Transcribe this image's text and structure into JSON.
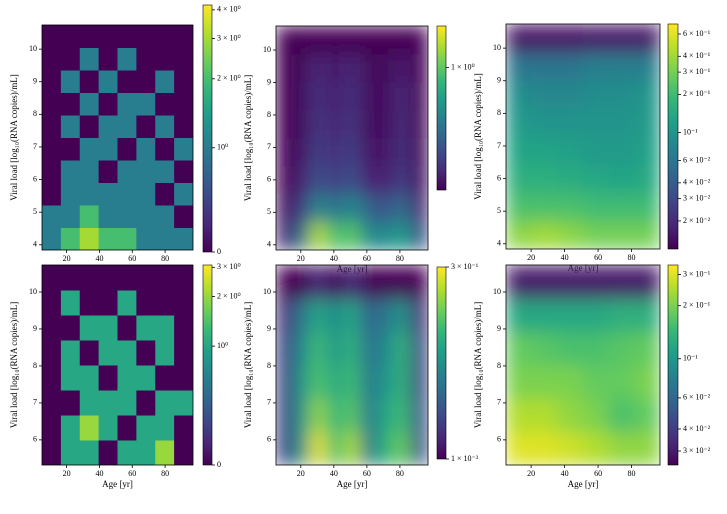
{
  "chart_data": [
    {
      "type": "heatmap",
      "colormap": "viridis",
      "smooth": false,
      "xlabel": "Age [yr]",
      "ylabel": "Viral load [log₁₀(RNA copies)/mL]",
      "xlim": [
        5,
        97
      ],
      "ylim": [
        3.84,
        10.74
      ],
      "xticks": [
        20,
        40,
        60,
        80
      ],
      "yticks": [
        4,
        5,
        6,
        7,
        8,
        9,
        10
      ],
      "color_scale": "symlog",
      "linscale": 0.455,
      "clim": [
        0,
        4.2
      ],
      "cticks": [
        0,
        {
          "value": 1,
          "label": "10⁰"
        },
        {
          "value": 2,
          "label": "2 × 10⁰"
        },
        {
          "value": 3,
          "label": "3 × 10⁰"
        },
        {
          "value": 4,
          "label": "4 × 10⁰"
        }
      ],
      "z": [
        [
          1,
          2,
          3,
          2,
          2,
          1,
          1,
          1
        ],
        [
          1,
          1,
          2,
          1,
          1,
          1,
          1,
          0
        ],
        [
          0,
          1,
          1,
          1,
          1,
          1,
          0,
          1
        ],
        [
          0,
          1,
          1,
          0,
          1,
          1,
          1,
          0
        ],
        [
          0,
          0,
          1,
          1,
          0,
          1,
          0,
          1
        ],
        [
          0,
          1,
          0,
          1,
          1,
          0,
          1,
          0
        ],
        [
          0,
          0,
          1,
          0,
          1,
          1,
          0,
          0
        ],
        [
          0,
          1,
          0,
          1,
          0,
          0,
          1,
          0
        ],
        [
          0,
          0,
          1,
          0,
          1,
          0,
          0,
          0
        ],
        [
          0,
          0,
          0,
          0,
          0,
          0,
          0,
          0
        ]
      ]
    },
    {
      "type": "heatmap",
      "colormap": "viridis",
      "smooth": true,
      "xlabel": "Age [yr]",
      "ylabel": "Viral load [log₁₀(RNA copies)/mL]",
      "xlim": [
        5,
        97
      ],
      "ylim": [
        3.84,
        10.74
      ],
      "xticks": [
        20,
        40,
        60,
        80
      ],
      "yticks": [
        4,
        5,
        6,
        7,
        8,
        9,
        10
      ],
      "color_scale": "log",
      "clim": [
        0.25,
        1.6
      ],
      "cticks": [
        {
          "value": 1,
          "label": "1 × 10⁰"
        }
      ],
      "z": [
        [
          0.3,
          0.5,
          1.3,
          0.9,
          1.0,
          0.6,
          0.6,
          0.7,
          0.4
        ],
        [
          0.27,
          0.35,
          0.6,
          0.5,
          0.6,
          0.45,
          0.4,
          0.5,
          0.3
        ],
        [
          0.25,
          0.3,
          0.4,
          0.35,
          0.4,
          0.3,
          0.3,
          0.35,
          0.27
        ],
        [
          0.25,
          0.28,
          0.36,
          0.32,
          0.36,
          0.28,
          0.28,
          0.33,
          0.26
        ],
        [
          0.25,
          0.27,
          0.34,
          0.3,
          0.34,
          0.27,
          0.27,
          0.32,
          0.25
        ],
        [
          0.25,
          0.27,
          0.33,
          0.29,
          0.33,
          0.27,
          0.27,
          0.31,
          0.25
        ],
        [
          0.25,
          0.26,
          0.31,
          0.28,
          0.31,
          0.26,
          0.26,
          0.29,
          0.25
        ],
        [
          0.25,
          0.25,
          0.25,
          0.25,
          0.25,
          0.25,
          0.25,
          0.25,
          0.25
        ]
      ]
    },
    {
      "type": "heatmap",
      "colormap": "viridis",
      "smooth": true,
      "xlabel": "Age [yr]",
      "ylabel": "Viral load [log₁₀(RNA copies)/mL]",
      "xlim": [
        5,
        97
      ],
      "ylim": [
        3.84,
        10.74
      ],
      "xticks": [
        20,
        40,
        60,
        80
      ],
      "yticks": [
        4,
        5,
        6,
        7,
        8,
        9,
        10
      ],
      "color_scale": "log",
      "clim": [
        0.012,
        0.72
      ],
      "cticks": [
        {
          "value": 0.6,
          "label": "6 × 10⁻¹"
        },
        {
          "value": 0.4,
          "label": "4 × 10⁻¹"
        },
        {
          "value": 0.3,
          "label": "3 × 10⁻¹"
        },
        {
          "value": 0.2,
          "label": "2 × 10⁻¹"
        },
        {
          "value": 0.1,
          "label": "10⁻¹"
        },
        {
          "value": 0.06,
          "label": "6 × 10⁻²"
        },
        {
          "value": 0.04,
          "label": "4 × 10⁻²"
        },
        {
          "value": 0.03,
          "label": "3 × 10⁻²"
        },
        {
          "value": 0.02,
          "label": "2 × 10⁻²"
        }
      ],
      "z": [
        [
          0.35,
          0.4,
          0.35,
          0.3,
          0.3,
          0.3
        ],
        [
          0.22,
          0.22,
          0.22,
          0.2,
          0.2,
          0.2
        ],
        [
          0.16,
          0.16,
          0.15,
          0.14,
          0.13,
          0.14
        ],
        [
          0.13,
          0.13,
          0.12,
          0.11,
          0.11,
          0.12
        ],
        [
          0.11,
          0.1,
          0.1,
          0.1,
          0.1,
          0.11
        ],
        [
          0.09,
          0.08,
          0.08,
          0.09,
          0.09,
          0.1
        ],
        [
          0.06,
          0.06,
          0.06,
          0.07,
          0.07,
          0.07
        ],
        [
          0.015,
          0.015,
          0.015,
          0.016,
          0.016,
          0.016
        ]
      ]
    },
    {
      "type": "heatmap",
      "colormap": "viridis",
      "smooth": false,
      "xlabel": "Age [yr]",
      "ylabel": "Viral load [log₁₀(RNA copies)/mL]",
      "xlim": [
        5,
        97
      ],
      "ylim": [
        5.32,
        10.73
      ],
      "xticks": [
        20,
        40,
        60,
        80
      ],
      "yticks": [
        6,
        7,
        8,
        9,
        10
      ],
      "color_scale": "symlog",
      "linscale": 0.72,
      "clim": [
        0,
        3.1
      ],
      "cticks": [
        0,
        {
          "value": 1,
          "label": "10⁰"
        },
        {
          "value": 2,
          "label": "2 × 10⁰"
        },
        {
          "value": 3,
          "label": "3 × 10⁰"
        }
      ],
      "z": [
        [
          0,
          1,
          1,
          0,
          1,
          1,
          2,
          0
        ],
        [
          0,
          1,
          2,
          1,
          0,
          1,
          1,
          0
        ],
        [
          0,
          0,
          1,
          1,
          1,
          0,
          1,
          1
        ],
        [
          0,
          1,
          1,
          0,
          1,
          1,
          0,
          0
        ],
        [
          0,
          1,
          0,
          1,
          1,
          0,
          1,
          0
        ],
        [
          0,
          0,
          1,
          1,
          0,
          1,
          1,
          0
        ],
        [
          0,
          1,
          0,
          0,
          1,
          0,
          0,
          0
        ],
        [
          0,
          0,
          0,
          0,
          0,
          0,
          0,
          0
        ]
      ]
    },
    {
      "type": "heatmap",
      "colormap": "viridis",
      "smooth": true,
      "xlabel": "Age [yr]",
      "ylabel": "Viral load [log₁₀(RNA copies)/mL]",
      "xlim": [
        5,
        97
      ],
      "ylim": [
        5.32,
        10.73
      ],
      "xticks": [
        20,
        40,
        60,
        80
      ],
      "yticks": [
        6,
        7,
        8,
        9,
        10
      ],
      "color_scale": "log",
      "clim": [
        0.001,
        0.3
      ],
      "cticks": [
        {
          "value": 0.3,
          "label": "3 × 10⁻¹"
        },
        {
          "value": 0.001,
          "label": "1 × 10⁻³"
        }
      ],
      "z": [
        [
          0.003,
          0.02,
          0.25,
          0.05,
          0.15,
          0.01,
          0.04,
          0.08,
          0.004
        ],
        [
          0.003,
          0.02,
          0.12,
          0.04,
          0.07,
          0.01,
          0.03,
          0.05,
          0.004
        ],
        [
          0.003,
          0.02,
          0.06,
          0.03,
          0.05,
          0.01,
          0.02,
          0.04,
          0.003
        ],
        [
          0.003,
          0.015,
          0.05,
          0.02,
          0.04,
          0.008,
          0.015,
          0.04,
          0.003
        ],
        [
          0.002,
          0.01,
          0.03,
          0.015,
          0.03,
          0.006,
          0.01,
          0.02,
          0.002
        ],
        [
          0.001,
          0.001,
          0.002,
          0.001,
          0.002,
          0.001,
          0.001,
          0.001,
          0.001
        ]
      ]
    },
    {
      "type": "heatmap",
      "colormap": "viridis",
      "smooth": true,
      "xlabel": "Age [yr]",
      "ylabel": "Viral load [log₁₀(RNA copies)/mL]",
      "xlim": [
        5,
        97
      ],
      "ylim": [
        5.32,
        10.73
      ],
      "xticks": [
        20,
        40,
        60,
        80
      ],
      "yticks": [
        6,
        7,
        8,
        9,
        10
      ],
      "color_scale": "log",
      "clim": [
        0.025,
        0.34
      ],
      "cticks": [
        {
          "value": 0.3,
          "label": "3 × 10⁻¹"
        },
        {
          "value": 0.2,
          "label": "2 × 10⁻¹"
        },
        {
          "value": 0.1,
          "label": "10⁻¹"
        },
        {
          "value": 0.06,
          "label": "6 × 10⁻²"
        },
        {
          "value": 0.04,
          "label": "4 × 10⁻²"
        },
        {
          "value": 0.03,
          "label": "3 × 10⁻²"
        }
      ],
      "z": [
        [
          0.3,
          0.3,
          0.28,
          0.25,
          0.22,
          0.22
        ],
        [
          0.25,
          0.25,
          0.22,
          0.2,
          0.16,
          0.18
        ],
        [
          0.2,
          0.2,
          0.2,
          0.18,
          0.18,
          0.2
        ],
        [
          0.18,
          0.17,
          0.16,
          0.16,
          0.17,
          0.18
        ],
        [
          0.12,
          0.12,
          0.12,
          0.12,
          0.13,
          0.13
        ],
        [
          0.03,
          0.03,
          0.03,
          0.03,
          0.03,
          0.03
        ]
      ]
    }
  ]
}
